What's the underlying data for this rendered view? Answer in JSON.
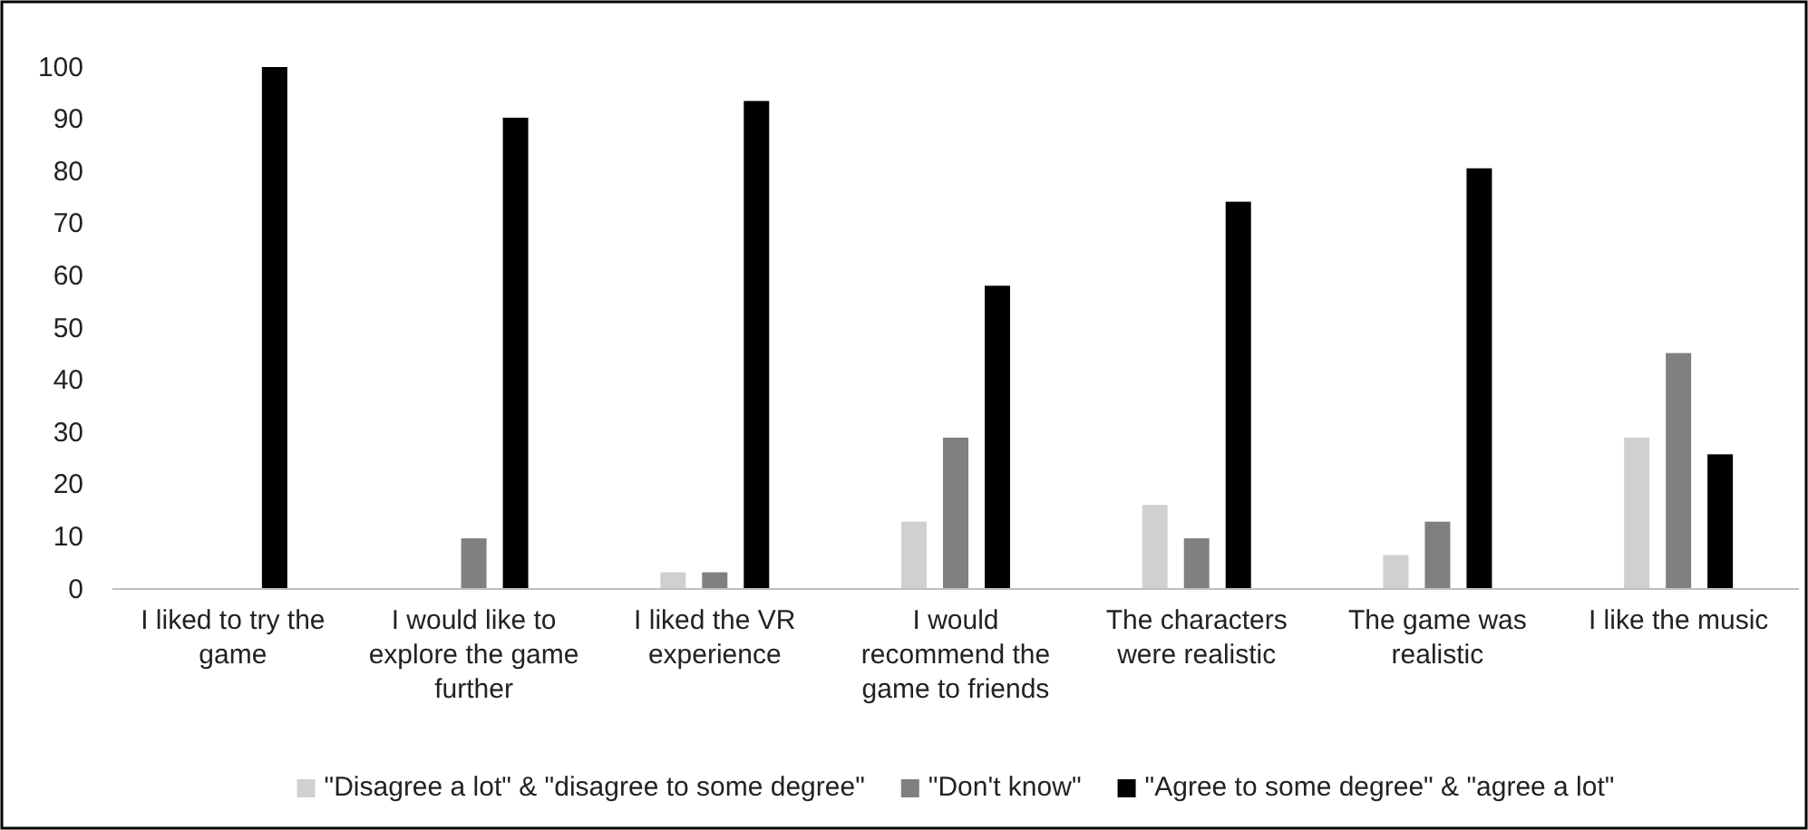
{
  "chart_data": {
    "type": "bar",
    "categories": [
      "I liked to try the game",
      "I would like to explore the game further",
      "I liked the VR experience",
      "I would recommend the game to friends",
      "The characters were realistic",
      "The game was realistic",
      "I like the music"
    ],
    "series": [
      {
        "name": "\"Disagree a lot\" & \"disagree to some degree\"",
        "color": "#d0d0d0",
        "values": [
          0,
          0,
          3.2,
          12.9,
          16.1,
          6.5,
          29
        ]
      },
      {
        "name": "\"Don't know\"",
        "color": "#808080",
        "values": [
          0,
          9.7,
          3.2,
          29,
          9.7,
          12.9,
          45.2
        ]
      },
      {
        "name": "\"Agree to some degree\" & \"agree a lot\"",
        "color": "#000000",
        "values": [
          100,
          90.3,
          93.5,
          58.1,
          74.2,
          80.6,
          25.8
        ]
      }
    ],
    "ylim": [
      0,
      100
    ],
    "yticks": [
      0,
      10,
      20,
      30,
      40,
      50,
      60,
      70,
      80,
      90,
      100
    ],
    "grid": false,
    "legend": "bottom"
  }
}
